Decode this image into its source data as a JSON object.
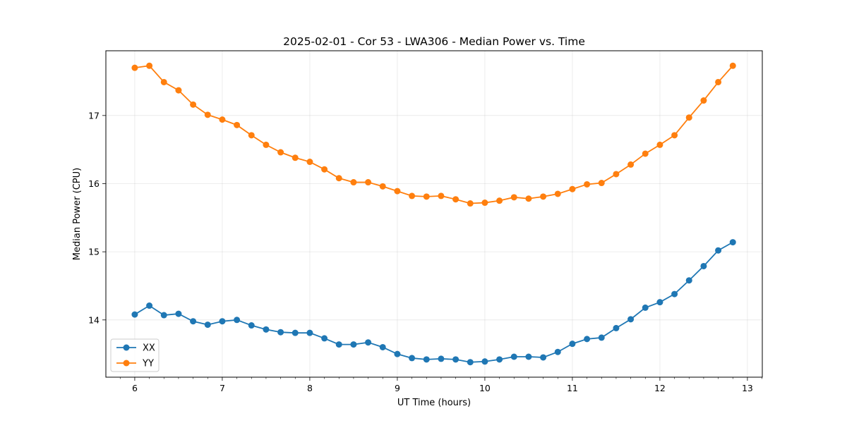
{
  "chart_data": {
    "type": "line",
    "title": "2025-02-01 - Cor 53 - LWA306 - Median Power vs. Time",
    "xlabel": "UT Time (hours)",
    "ylabel": "Median Power (CPU)",
    "xlim": [
      5.67,
      13.17
    ],
    "ylim": [
      13.16,
      17.95
    ],
    "xticks": [
      "6",
      "7",
      "8",
      "9",
      "10",
      "11",
      "12",
      "13"
    ],
    "yticks": [
      "14",
      "15",
      "16",
      "17"
    ],
    "grid": true,
    "legend_position": "lower-left",
    "x": [
      6.0,
      6.1667,
      6.3333,
      6.5,
      6.6667,
      6.8333,
      7.0,
      7.1667,
      7.3333,
      7.5,
      7.6667,
      7.8333,
      8.0,
      8.1667,
      8.3333,
      8.5,
      8.6667,
      8.8333,
      9.0,
      9.1667,
      9.3333,
      9.5,
      9.6667,
      9.8333,
      10.0,
      10.1667,
      10.3333,
      10.5,
      10.6667,
      10.8333,
      11.0,
      11.1667,
      11.3333,
      11.5,
      11.6667,
      11.8333,
      12.0,
      12.1667,
      12.3333,
      12.5,
      12.6667,
      12.8333
    ],
    "series": [
      {
        "name": "XX",
        "color": "#1f77b4",
        "values": [
          14.08,
          14.21,
          14.07,
          14.09,
          13.98,
          13.93,
          13.98,
          14.0,
          13.92,
          13.86,
          13.82,
          13.81,
          13.81,
          13.73,
          13.64,
          13.64,
          13.67,
          13.6,
          13.5,
          13.44,
          13.42,
          13.43,
          13.42,
          13.38,
          13.39,
          13.42,
          13.46,
          13.46,
          13.45,
          13.53,
          13.65,
          13.72,
          13.74,
          13.88,
          14.01,
          14.18,
          14.26,
          14.38,
          14.58,
          14.79,
          15.02,
          15.14
        ]
      },
      {
        "name": "YY",
        "color": "#ff7f0e",
        "values": [
          17.7,
          17.73,
          17.49,
          17.37,
          17.16,
          17.01,
          16.94,
          16.86,
          16.71,
          16.57,
          16.46,
          16.38,
          16.32,
          16.21,
          16.08,
          16.02,
          16.02,
          15.96,
          15.89,
          15.82,
          15.81,
          15.82,
          15.77,
          15.71,
          15.72,
          15.75,
          15.8,
          15.78,
          15.81,
          15.85,
          15.92,
          15.99,
          16.01,
          16.14,
          16.28,
          16.44,
          16.57,
          16.71,
          16.97,
          17.22,
          17.49,
          17.73
        ]
      }
    ]
  }
}
